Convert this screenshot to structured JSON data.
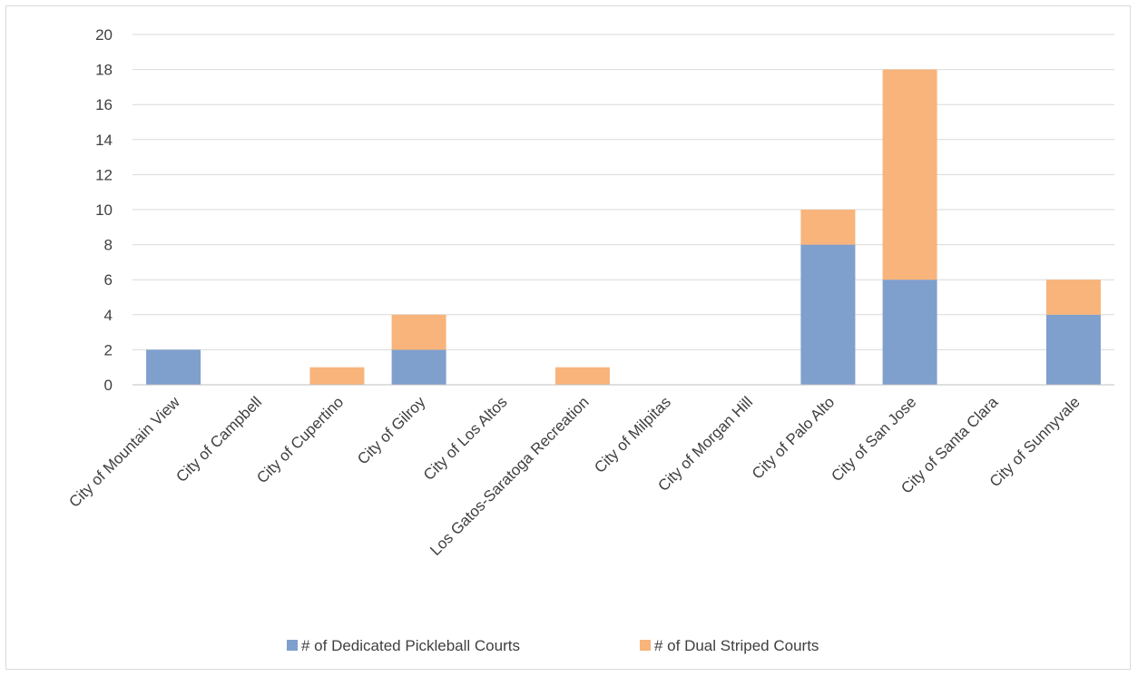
{
  "chart_data": {
    "type": "bar",
    "stacked": true,
    "categories": [
      "City of Mountain View",
      "City of Campbell",
      "City of Cupertino",
      "City of Gilroy",
      "City of Los Altos",
      "Los Gatos-Saratoga Recreation",
      "City of Milpitas",
      "City of Morgan Hill",
      "City of Palo Alto",
      "City of San Jose",
      "City of Santa Clara",
      "City of Sunnyvale"
    ],
    "series": [
      {
        "name": "# of Dedicated Pickleball Courts",
        "color": "#7f9fcd",
        "values": [
          2,
          0,
          0,
          2,
          0,
          0,
          0,
          0,
          8,
          6,
          0,
          4
        ]
      },
      {
        "name": "# of Dual Striped Courts",
        "color": "#f8b47a",
        "values": [
          0,
          0,
          1,
          2,
          0,
          1,
          0,
          0,
          2,
          12,
          0,
          2
        ]
      }
    ],
    "ylim": [
      0,
      20
    ],
    "yticks": [
      0,
      2,
      4,
      6,
      8,
      10,
      12,
      14,
      16,
      18,
      20
    ],
    "grid": true,
    "legend_position": "bottom",
    "gridline_color": "#d9d9d9",
    "axis_color": "#bfbfbf"
  }
}
